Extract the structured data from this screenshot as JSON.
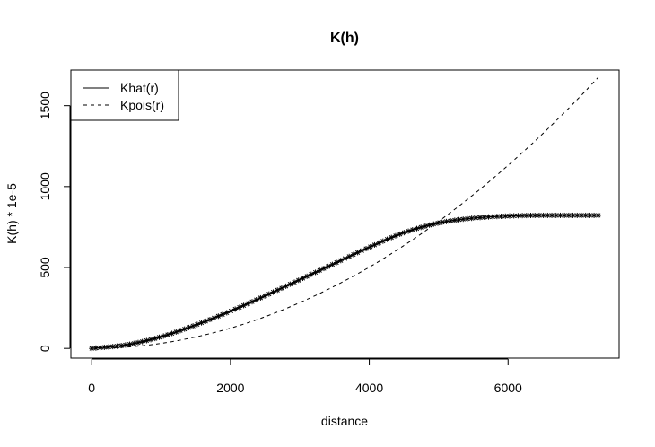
{
  "chart_data": {
    "type": "line",
    "title": "K(h)",
    "xlabel": "distance",
    "ylabel": "K(h) * 1e-5",
    "xlim": [
      -300,
      7600
    ],
    "ylim": [
      -60,
      1720
    ],
    "xticks": [
      0,
      2000,
      4000,
      6000
    ],
    "yticks": [
      0,
      500,
      1000,
      1500
    ],
    "xtick_labels": [
      "0",
      "2000",
      "4000",
      "6000"
    ],
    "ytick_labels": [
      "0",
      "500",
      "1000",
      "1500"
    ],
    "grid": false,
    "legend_position": "top-left",
    "series": [
      {
        "name": "Khat(r)",
        "line_style": "solid",
        "marker": "star",
        "color": "#000000",
        "x": [
          0,
          500,
          1000,
          1500,
          2000,
          2500,
          3000,
          3500,
          4000,
          4500,
          5000,
          5500,
          6000,
          6500,
          7000,
          7300
        ],
        "y": [
          0,
          22,
          72,
          145,
          230,
          325,
          425,
          525,
          625,
          715,
          775,
          805,
          818,
          822,
          822,
          822
        ]
      },
      {
        "name": "Kpois(r)",
        "line_style": "dashed",
        "marker": "none",
        "color": "#000000",
        "x": [
          0,
          500,
          1000,
          1500,
          2000,
          2500,
          3000,
          3500,
          4000,
          4500,
          5000,
          5500,
          6000,
          6500,
          7000,
          7300
        ],
        "y": [
          0,
          8,
          31,
          71,
          125,
          196,
          283,
          385,
          502,
          636,
          785,
          950,
          1131,
          1327,
          1539,
          1675
        ]
      }
    ]
  }
}
